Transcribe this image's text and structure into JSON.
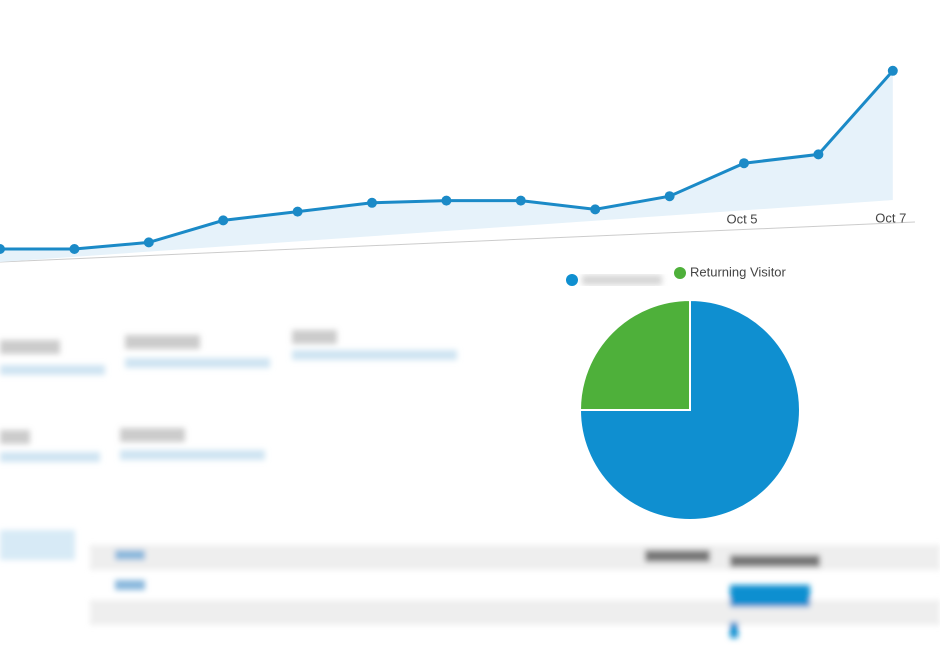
{
  "line_chart": {
    "type": "line",
    "categories": [
      null,
      null,
      null,
      null,
      null,
      null,
      null,
      null,
      null,
      null,
      "Oct 5",
      null,
      "Oct 7"
    ],
    "values": [
      5,
      5,
      8,
      18,
      22,
      26,
      27,
      27,
      23,
      29,
      44,
      48,
      86
    ],
    "ylim": [
      0,
      100
    ],
    "color": "#1b8ac7"
  },
  "pie_chart": {
    "type": "pie",
    "labels": [
      null,
      "Returning Visitor"
    ],
    "values": [
      75,
      25
    ],
    "colors": [
      "#0f8fd0",
      "#4eb03a"
    ]
  }
}
